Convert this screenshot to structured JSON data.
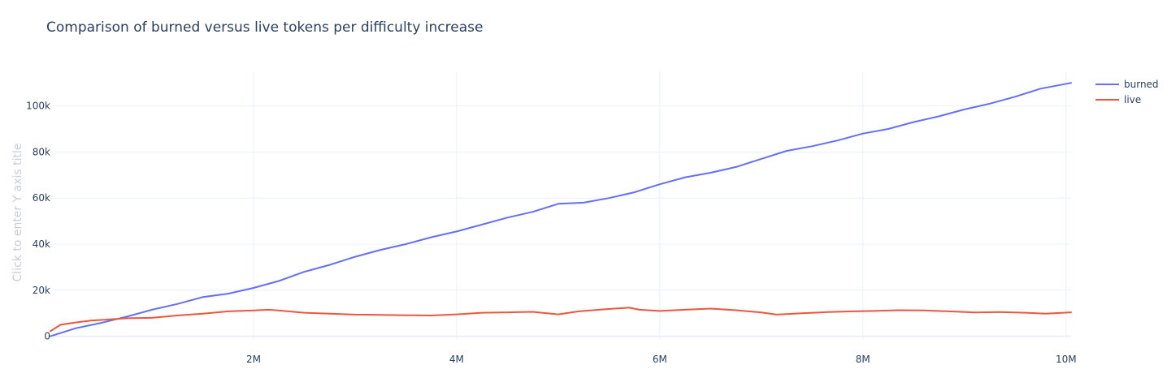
{
  "chart_data": {
    "type": "line",
    "title": "Comparison of burned versus live tokens per difficulty increase",
    "xlabel": "",
    "ylabel": "Click to enter Y axis title",
    "xlim": [
      0,
      10050000
    ],
    "ylim": [
      -1200,
      115000
    ],
    "x_ticks": [
      {
        "value": 2000000,
        "label": "2M"
      },
      {
        "value": 4000000,
        "label": "4M"
      },
      {
        "value": 6000000,
        "label": "6M"
      },
      {
        "value": 8000000,
        "label": "8M"
      },
      {
        "value": 10000000,
        "label": "10M"
      }
    ],
    "y_ticks": [
      {
        "value": 0,
        "label": "0"
      },
      {
        "value": 20000,
        "label": "20k"
      },
      {
        "value": 40000,
        "label": "40k"
      },
      {
        "value": 60000,
        "label": "60k"
      },
      {
        "value": 80000,
        "label": "80k"
      },
      {
        "value": 100000,
        "label": "100k"
      }
    ],
    "grid": true,
    "legend_position": "top-right",
    "series": [
      {
        "name": "burned",
        "color": "#636efa",
        "x": [
          0,
          250000,
          500000,
          750000,
          1000000,
          1250000,
          1500000,
          1750000,
          2000000,
          2250000,
          2500000,
          2750000,
          3000000,
          3250000,
          3500000,
          3750000,
          4000000,
          4250000,
          4500000,
          4750000,
          5000000,
          5250000,
          5500000,
          5750000,
          6000000,
          6250000,
          6500000,
          6750000,
          7000000,
          7250000,
          7500000,
          7750000,
          8000000,
          8250000,
          8500000,
          8750000,
          9000000,
          9250000,
          9500000,
          9750000,
          10050000
        ],
        "y": [
          0,
          3500,
          5800,
          8500,
          11500,
          14000,
          17000,
          18500,
          21000,
          24000,
          28000,
          31000,
          34500,
          37500,
          40000,
          43000,
          45500,
          48500,
          51500,
          54000,
          57500,
          58000,
          60000,
          62500,
          66000,
          69000,
          71000,
          73500,
          77000,
          80500,
          82500,
          85000,
          88000,
          90000,
          93000,
          95500,
          98500,
          101000,
          104000,
          107500,
          110000
        ]
      },
      {
        "name": "live",
        "color": "#ef553b",
        "x": [
          0,
          100000,
          250000,
          400000,
          550000,
          750000,
          1000000,
          1250000,
          1500000,
          1750000,
          2000000,
          2150000,
          2300000,
          2500000,
          2750000,
          3000000,
          3250000,
          3500000,
          3750000,
          4000000,
          4250000,
          4500000,
          4750000,
          5000000,
          5200000,
          5400000,
          5550000,
          5700000,
          5800000,
          6000000,
          6250000,
          6500000,
          6750000,
          7000000,
          7150000,
          7400000,
          7650000,
          7900000,
          8100000,
          8350000,
          8600000,
          8850000,
          9100000,
          9350000,
          9600000,
          9800000,
          10050000
        ],
        "y": [
          2200,
          5000,
          6000,
          6800,
          7200,
          7800,
          8000,
          9000,
          9800,
          10800,
          11200,
          11500,
          11000,
          10200,
          9800,
          9400,
          9300,
          9100,
          9000,
          9500,
          10200,
          10400,
          10600,
          9500,
          10800,
          11500,
          12000,
          12400,
          11500,
          11000,
          11500,
          12000,
          11300,
          10300,
          9400,
          10000,
          10500,
          10800,
          11000,
          11300,
          11200,
          10800,
          10300,
          10500,
          10200,
          9800,
          10400
        ]
      }
    ]
  }
}
